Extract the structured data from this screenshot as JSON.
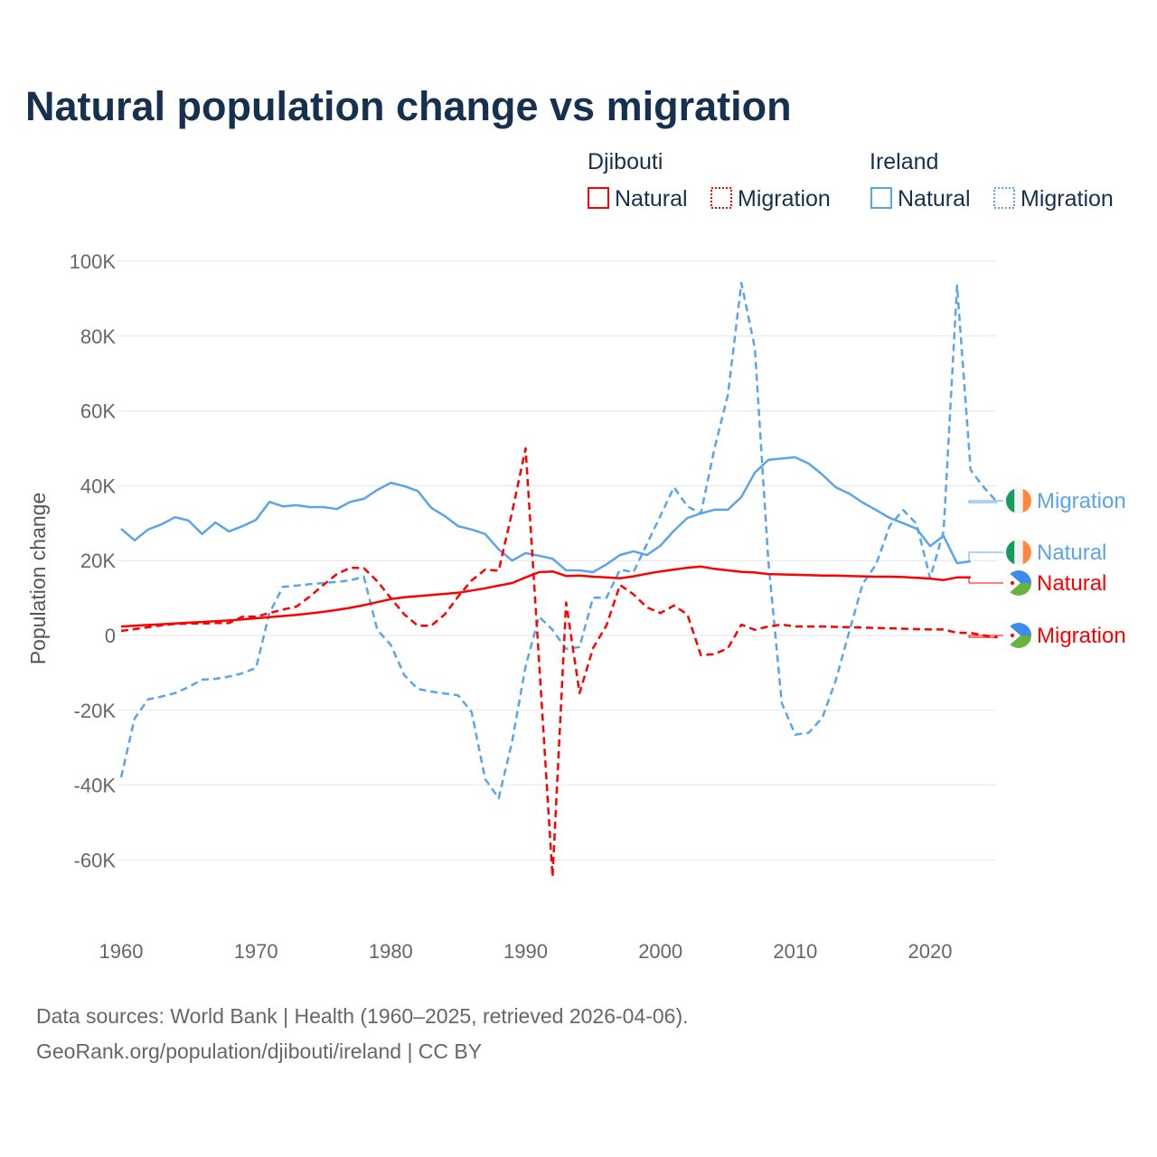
{
  "chart_data": {
    "type": "line",
    "title": "Natural population change vs migration",
    "xlabel": "",
    "ylabel": "Population change",
    "xlim": [
      1960,
      2025
    ],
    "ylim": [
      -65000,
      100000
    ],
    "grid": true,
    "legend_placement": "top-right",
    "x_ticks": [
      1960,
      1970,
      1980,
      1990,
      2000,
      2010,
      2020
    ],
    "x_tick_labels": [
      "1960",
      "1970",
      "1980",
      "1990",
      "2000",
      "2010",
      "2020"
    ],
    "y_ticks": [
      -60000,
      -40000,
      -20000,
      0,
      20000,
      40000,
      60000,
      80000,
      100000
    ],
    "y_tick_labels": [
      "-60K",
      "-40K",
      "-20K",
      "0",
      "20K",
      "40K",
      "60K",
      "80K",
      "100K"
    ],
    "legend": {
      "groups": [
        {
          "country": "Djibouti",
          "items": [
            "Natural",
            "Migration"
          ]
        },
        {
          "country": "Ireland",
          "items": [
            "Natural",
            "Migration"
          ]
        }
      ]
    },
    "colors": {
      "Djibouti": "#ff0000",
      "Ireland": "#5aa5ea"
    },
    "series": [
      {
        "name": "Ireland Migration",
        "country": "Ireland",
        "kind": "Migration",
        "style": "dashed",
        "end_label": "Migration",
        "start_year": 1960,
        "values": [
          -37900,
          -22200,
          -17100,
          -16300,
          -15400,
          -13800,
          -11800,
          -11600,
          -11000,
          -10100,
          -8700,
          6000,
          13000,
          13300,
          13700,
          14000,
          14300,
          14700,
          15700,
          1500,
          -2500,
          -10600,
          -14300,
          -15000,
          -15500,
          -16000,
          -20500,
          -38400,
          -43500,
          -28300,
          -8200,
          5000,
          1500,
          -3600,
          -3100,
          10100,
          10100,
          17600,
          16900,
          24500,
          32000,
          39600,
          34500,
          32600,
          49800,
          64300,
          94200,
          76800,
          20000,
          -18100,
          -26500,
          -26000,
          -22000,
          -12000,
          1000,
          13800,
          19000,
          29300,
          33500,
          29800,
          15300,
          27800,
          93500,
          44200,
          39500,
          35500
        ]
      },
      {
        "name": "Ireland Natural",
        "country": "Ireland",
        "kind": "Natural",
        "style": "solid",
        "end_label": "Natural",
        "start_year": 1960,
        "values": [
          28500,
          25400,
          28300,
          29700,
          31600,
          30700,
          27100,
          30200,
          27800,
          29200,
          30900,
          35700,
          34500,
          34800,
          34300,
          34300,
          33800,
          35700,
          36500,
          38900,
          40800,
          39900,
          38600,
          34100,
          31900,
          29200,
          28300,
          27100,
          23000,
          20000,
          22000,
          21300,
          20500,
          17400,
          17400,
          16900,
          19000,
          21500,
          22500,
          21500,
          24000,
          28000,
          31400,
          32600,
          33600,
          33600,
          37000,
          43500,
          46900,
          47300,
          47600,
          45900,
          43000,
          39600,
          37900,
          35500,
          33500,
          31400,
          30000,
          28500,
          23900,
          26600,
          19300,
          19800
        ]
      },
      {
        "name": "Djibouti Natural",
        "country": "Djibouti",
        "kind": "Natural",
        "style": "solid",
        "end_label": "Natural",
        "start_year": 1960,
        "values": [
          2400,
          2600,
          2800,
          3000,
          3200,
          3400,
          3600,
          3800,
          4000,
          4300,
          4600,
          4900,
          5200,
          5500,
          5900,
          6300,
          6800,
          7400,
          8100,
          8900,
          9700,
          10200,
          10500,
          10800,
          11100,
          11400,
          12000,
          12600,
          13300,
          14000,
          15500,
          16900,
          17100,
          15900,
          16000,
          15700,
          15500,
          15300,
          15800,
          16500,
          17100,
          17600,
          18100,
          18400,
          17800,
          17400,
          17000,
          16800,
          16400,
          16300,
          16200,
          16100,
          16000,
          16000,
          15900,
          15800,
          15700,
          15700,
          15600,
          15400,
          15200,
          14800,
          15500,
          15500
        ]
      },
      {
        "name": "Djibouti Migration",
        "country": "Djibouti",
        "kind": "Migration",
        "style": "dashed",
        "end_label": "Migration",
        "start_year": 1960,
        "values": [
          1200,
          1700,
          2200,
          2700,
          3100,
          3200,
          3200,
          3300,
          3300,
          5000,
          5000,
          6000,
          6900,
          7700,
          10400,
          13500,
          16400,
          18100,
          18000,
          14500,
          10000,
          5600,
          2600,
          2600,
          5600,
          10400,
          14700,
          17600,
          17300,
          33000,
          50000,
          -7000,
          -64500,
          8800,
          -15400,
          -3400,
          2700,
          13500,
          11000,
          7500,
          6000,
          8000,
          5600,
          -5300,
          -5000,
          -3400,
          2900,
          1500,
          2400,
          2900,
          2400,
          2400,
          2400,
          2300,
          2200,
          2100,
          2000,
          1900,
          1800,
          1700,
          1600,
          1600,
          700,
          700,
          0,
          -500
        ]
      }
    ]
  },
  "footer": {
    "line1": "Data sources: World Bank | Health (1960–2025, retrieved 2026-04-06).",
    "line2": "GeoRank.org/population/djibouti/ireland | CC BY"
  }
}
